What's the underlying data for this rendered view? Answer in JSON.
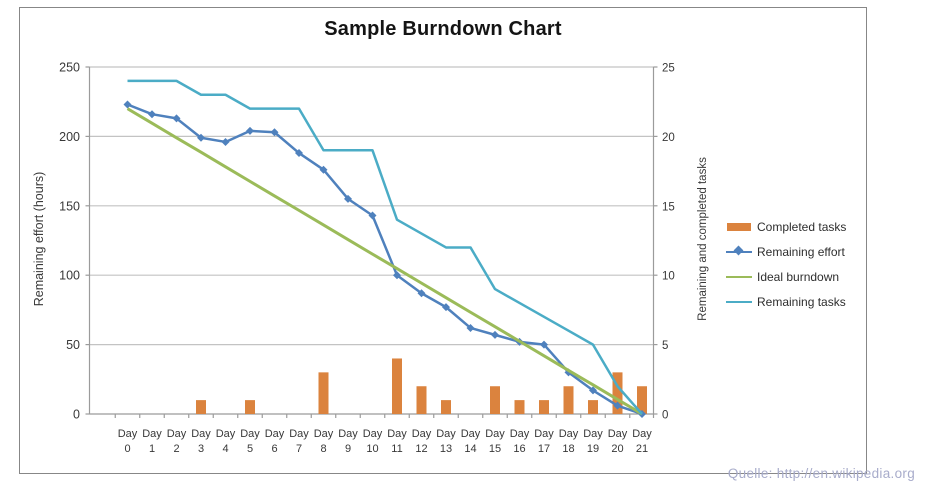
{
  "chart": {
    "title": "Sample Burndown Chart",
    "source_note": "Quelle: http://en.wikipedia.org",
    "left_axis": {
      "title": "Remaining effort (hours)",
      "ticks": [
        0,
        50,
        100,
        150,
        200,
        250
      ]
    },
    "right_axis": {
      "title": "Remaining and completed tasks",
      "ticks": [
        0,
        5,
        10,
        15,
        20,
        25
      ]
    },
    "x_axis": {
      "label_prefix": "Day",
      "days": [
        0,
        1,
        2,
        3,
        4,
        5,
        6,
        7,
        8,
        9,
        10,
        11,
        12,
        13,
        14,
        15,
        16,
        17,
        18,
        19,
        20,
        21
      ]
    },
    "legend": {
      "items": [
        {
          "label": "Completed tasks"
        },
        {
          "label": "Remaining effort"
        },
        {
          "label": "Ideal burndown"
        },
        {
          "label": "Remaining tasks"
        }
      ]
    },
    "colors": {
      "completed_tasks": "#db833e",
      "remaining_effort": "#4f81bd",
      "ideal_burndown": "#9bbb59",
      "remaining_tasks": "#4bacc6",
      "gridline": "#c3c3c3",
      "axis_line": "#9b9b9b",
      "tick_text": "#383838",
      "frame_border": "#878787"
    }
  },
  "chart_data": {
    "type": "combo",
    "title": "Sample Burndown Chart",
    "categories": [
      "Day 0",
      "Day 1",
      "Day 2",
      "Day 3",
      "Day 4",
      "Day 5",
      "Day 6",
      "Day 7",
      "Day 8",
      "Day 9",
      "Day 10",
      "Day 11",
      "Day 12",
      "Day 13",
      "Day 14",
      "Day 15",
      "Day 16",
      "Day 17",
      "Day 18",
      "Day 19",
      "Day 20",
      "Day 21"
    ],
    "left_axis_label": "Remaining effort (hours)",
    "right_axis_label": "Remaining and completed tasks",
    "left_ylim": [
      0,
      250
    ],
    "right_ylim": [
      0,
      25
    ],
    "grid": true,
    "legend_position": "right",
    "series": [
      {
        "name": "Completed tasks",
        "type": "bar",
        "axis": "right",
        "color": "#db833e",
        "values": [
          0,
          0,
          0,
          1,
          0,
          1,
          0,
          0,
          3,
          0,
          0,
          4,
          2,
          1,
          0,
          2,
          1,
          1,
          2,
          1,
          3,
          2
        ]
      },
      {
        "name": "Remaining effort",
        "type": "line",
        "axis": "left",
        "color": "#4f81bd",
        "marker": "diamond",
        "values": [
          223,
          216,
          213,
          199,
          196,
          204,
          203,
          188,
          176,
          155,
          143,
          100,
          87,
          77,
          62,
          57,
          52,
          50,
          30,
          17,
          6,
          0
        ]
      },
      {
        "name": "Ideal burndown",
        "type": "line",
        "axis": "left",
        "color": "#9bbb59",
        "values": [
          220,
          209.5,
          199,
          188.6,
          178.1,
          167.6,
          157.1,
          146.7,
          136.2,
          125.7,
          115.2,
          104.8,
          94.3,
          83.8,
          73.3,
          62.9,
          52.4,
          41.9,
          31.4,
          21,
          10.5,
          0
        ]
      },
      {
        "name": "Remaining tasks",
        "type": "line",
        "axis": "right",
        "color": "#4bacc6",
        "values": [
          24,
          24,
          24,
          23,
          23,
          22,
          22,
          22,
          19,
          19,
          19,
          14,
          13,
          12,
          12,
          9,
          8,
          7,
          6,
          5,
          2,
          0
        ]
      }
    ]
  }
}
